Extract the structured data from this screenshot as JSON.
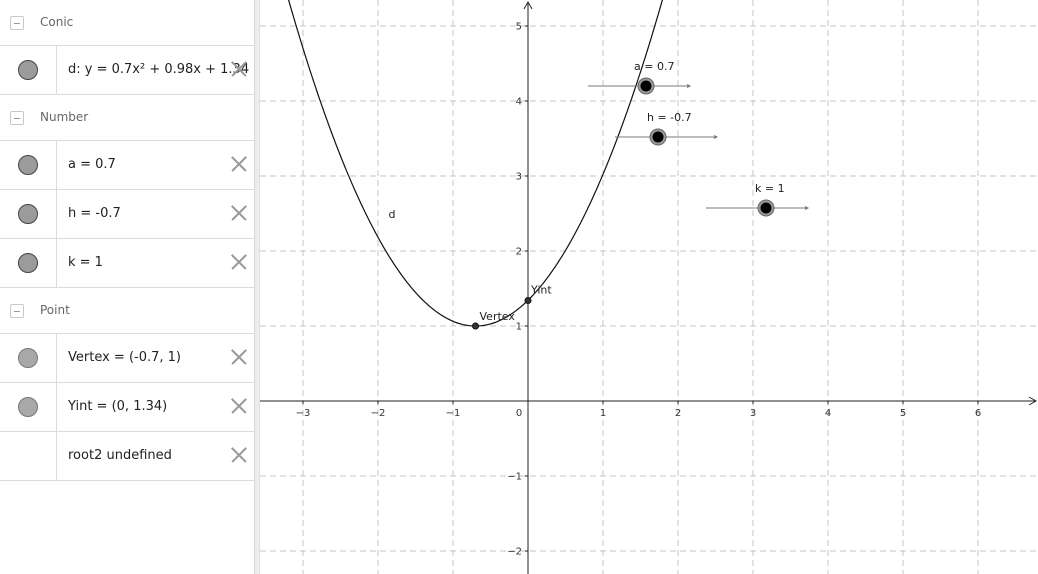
{
  "algebra": {
    "groups": [
      {
        "label": "Conic"
      },
      {
        "label": "Number"
      },
      {
        "label": "Point"
      }
    ],
    "rows": [
      {
        "text": "d: y = 0.7x² + 0.98x + 1.34"
      },
      {
        "text": "a = 0.7"
      },
      {
        "text": "h = -0.7"
      },
      {
        "text": "k = 1"
      },
      {
        "text": "Vertex = (-0.7, 1)"
      },
      {
        "text": "Yint = (0, 1.34)"
      },
      {
        "text": "root2 undefined"
      }
    ]
  },
  "graph": {
    "x_range": [
      -3.5,
      6.8
    ],
    "y_range": [
      -2.2,
      5.4
    ],
    "x_ticks": [
      "-3",
      "-2",
      "-1",
      "0",
      "1",
      "2",
      "3",
      "4",
      "5",
      "6"
    ],
    "y_ticks": [
      "-2",
      "-1",
      "1",
      "2",
      "3",
      "4",
      "5"
    ],
    "curve": {
      "label": "d",
      "a": 0.7,
      "h": -0.7,
      "k": 1
    },
    "points": [
      {
        "label": "Vertex",
        "x": -0.7,
        "y": 1
      },
      {
        "label": "Yint",
        "x": 0,
        "y": 1.34
      }
    ],
    "sliders": [
      {
        "label": "a = 0.7",
        "value": 0.7
      },
      {
        "label": "h = -0.7",
        "value": -0.7
      },
      {
        "label": "k = 1",
        "value": 1
      }
    ]
  }
}
